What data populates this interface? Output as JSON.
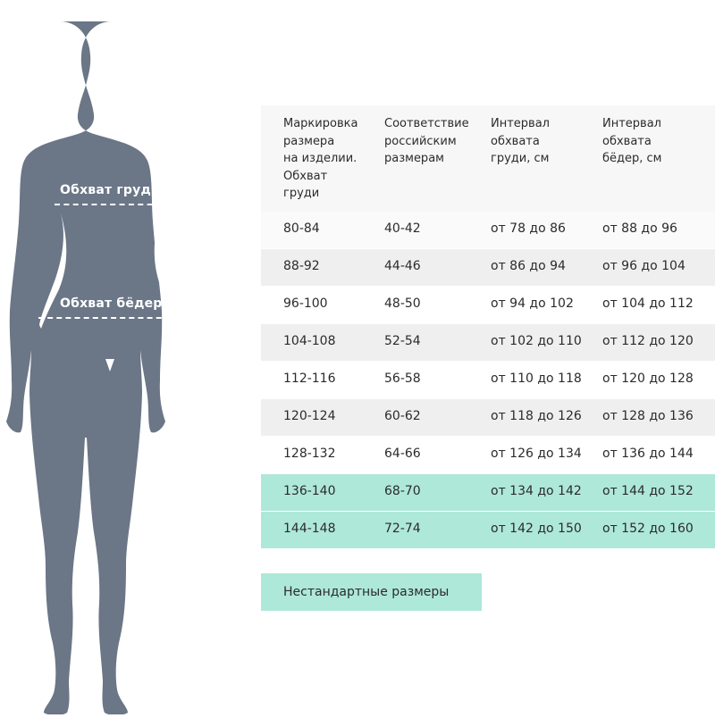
{
  "figure": {
    "color": "#6b7687",
    "chest_label": "Обхват груди",
    "hips_label": "Обхват бёдер"
  },
  "table": {
    "headers": [
      "Маркировка размера на изделии. Обхват груди",
      "Соответствие российским размерам",
      "Интервал обхвата груди, см",
      "Интервал обхвата бёдер, см"
    ],
    "header_lines": [
      [
        "Маркировка",
        "размера",
        "на изделии.",
        "Обхват",
        "груди"
      ],
      [
        "Соответствие",
        "российским",
        "размерам"
      ],
      [
        "Интервал",
        "обхвата",
        "груди, см"
      ],
      [
        "Интервал",
        "обхвата",
        "бёдер, см"
      ]
    ],
    "rows": [
      [
        "80-84",
        "40-42",
        "от 78 до 86",
        "от 88 до 96"
      ],
      [
        "88-92",
        "44-46",
        "от 86 до 94",
        "от 96 до 104"
      ],
      [
        "96-100",
        "48-50",
        "от 94 до 102",
        "от 104 до 112"
      ],
      [
        "104-108",
        "52-54",
        "от 102 до 110",
        "от 112 до 120"
      ],
      [
        "112-116",
        "56-58",
        "от 110 до 118",
        "от 120 до 128"
      ],
      [
        "120-124",
        "60-62",
        "от 118 до 126",
        "от 128 до 136"
      ],
      [
        "128-132",
        "64-66",
        "от 126 до 134",
        "от 136 до 144"
      ],
      [
        "136-140",
        "68-70",
        "от 134 до 142",
        "от 144 до 152"
      ],
      [
        "144-148",
        "72-74",
        "от 142 до 150",
        "от 152 до 160"
      ]
    ],
    "highlight_color": "#aee8d9"
  },
  "nonstandard_button": "Нестандартные размеры"
}
